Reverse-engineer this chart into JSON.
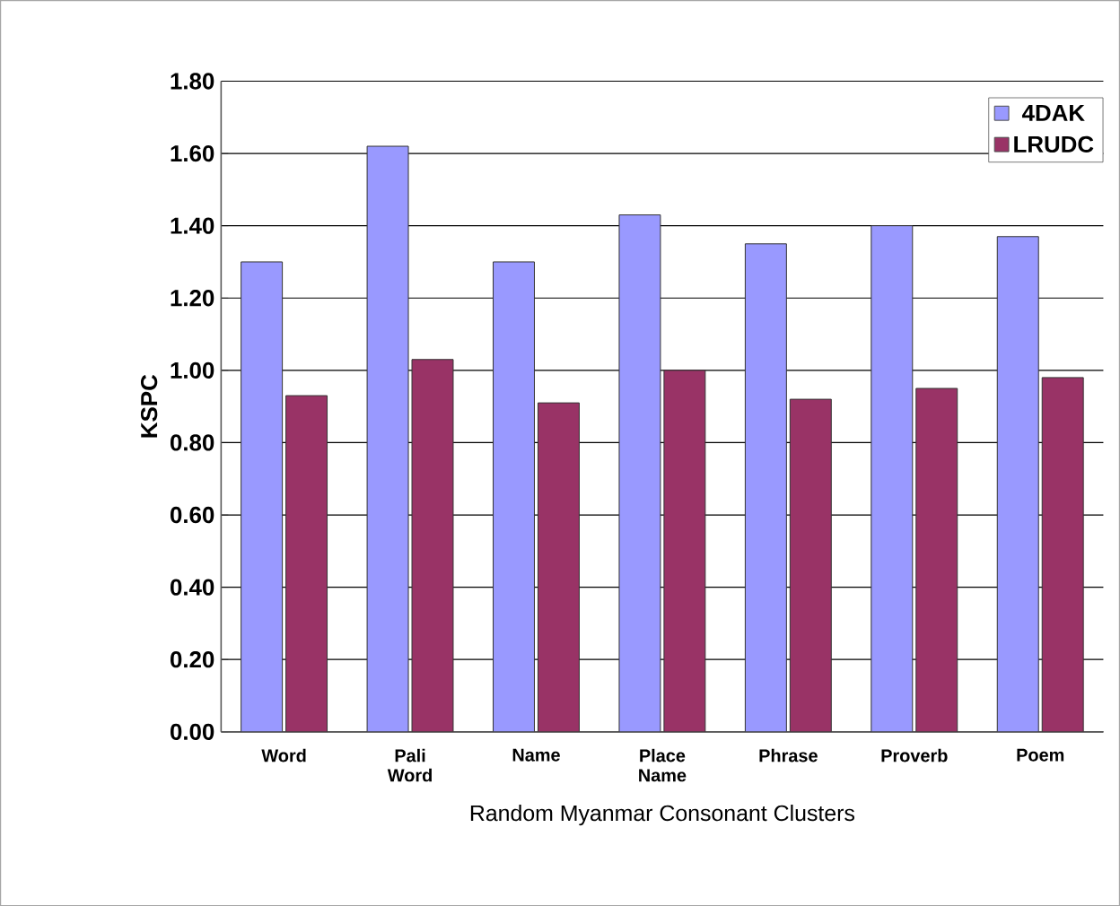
{
  "chart_data": {
    "type": "bar",
    "xlabel": "Random Myanmar Consonant Clusters",
    "ylabel": "KSPC",
    "categories": [
      "Word",
      "Pali Word",
      "Name",
      "Place Name",
      "Phrase",
      "Proverb",
      "Poem"
    ],
    "series": [
      {
        "name": "4DAK",
        "color": "#9999ff",
        "values": [
          1.3,
          1.62,
          1.3,
          1.43,
          1.35,
          1.4,
          1.37
        ]
      },
      {
        "name": "LRUDC",
        "color": "#993366",
        "values": [
          0.93,
          1.03,
          0.91,
          1.0,
          0.92,
          0.95,
          0.98
        ]
      }
    ],
    "ylim": [
      0,
      1.8
    ],
    "yticks": [
      {
        "value": 0,
        "label": "0.00"
      },
      {
        "value": 0.2,
        "label": "0.20"
      },
      {
        "value": 0.4,
        "label": "0.40"
      },
      {
        "value": 0.6,
        "label": "0.60"
      },
      {
        "value": 0.8,
        "label": "0.80"
      },
      {
        "value": 1.0,
        "label": "1.00"
      },
      {
        "value": 1.2,
        "label": "1.20"
      },
      {
        "value": 1.4,
        "label": "1.40"
      },
      {
        "value": 1.6,
        "label": "1.60"
      },
      {
        "value": 1.8,
        "label": "1.80"
      }
    ],
    "grid": "y",
    "legend": "top right"
  }
}
